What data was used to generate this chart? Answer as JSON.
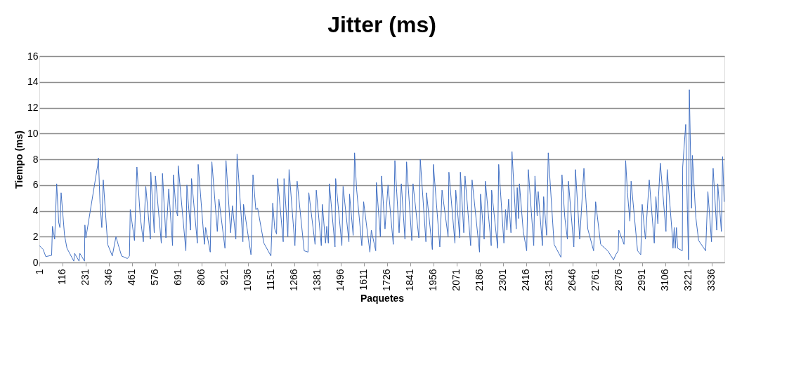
{
  "chart_data": {
    "type": "line",
    "title": "Jitter (ms)",
    "xlabel": "Paquetes",
    "ylabel": "Tiempo (ms)",
    "xlim": [
      1,
      3400
    ],
    "xticks": [
      1,
      116,
      231,
      346,
      461,
      576,
      691,
      806,
      921,
      1036,
      1151,
      1266,
      1381,
      1496,
      1611,
      1726,
      1841,
      1956,
      2071,
      2186,
      2301,
      2416,
      2531,
      2646,
      2761,
      2876,
      2991,
      3106,
      3221,
      3336
    ],
    "ylim": [
      0,
      16
    ],
    "yticks": [
      0,
      2,
      4,
      6,
      8,
      10,
      12,
      14,
      16
    ],
    "grid": "y",
    "marker": "none",
    "line_style": "solid",
    "series": [
      {
        "color": "#4472c4",
        "x": [
          1,
          20,
          33,
          62,
          66,
          77,
          87,
          97,
          103,
          109,
          126,
          138,
          172,
          176,
          198,
          202,
          225,
          227,
          232,
          290,
          294,
          302,
          311,
          318,
          340,
          363,
          381,
          392,
          409,
          438,
          448,
          452,
          473,
          485,
          502,
          517,
          529,
          552,
          554,
          571,
          577,
          606,
          612,
          629,
          643,
          662,
          666,
          679,
          687,
          690,
          728,
          733,
          751,
          756,
          785,
          789,
          820,
          826,
          849,
          857,
          884,
          892,
          922,
          927,
          950,
          959,
          976,
          982,
          1011,
          1014,
          1051,
          1061,
          1075,
          1084,
          1115,
          1150,
          1159,
          1169,
          1178,
          1183,
          1211,
          1215,
          1234,
          1240,
          1269,
          1280,
          1315,
          1334,
          1338,
          1369,
          1375,
          1400,
          1405,
          1421,
          1427,
          1435,
          1440,
          1468,
          1471,
          1502,
          1508,
          1537,
          1540,
          1558,
          1565,
          1575,
          1601,
          1610,
          1641,
          1648,
          1670,
          1673,
          1693,
          1699,
          1716,
          1731,
          1757,
          1765,
          1786,
          1797,
          1815,
          1823,
          1849,
          1855,
          1884,
          1891,
          1919,
          1922,
          1951,
          1956,
          1988,
          1999,
          2029,
          2033,
          2063,
          2067,
          2087,
          2090,
          2107,
          2113,
          2141,
          2148,
          2185,
          2190,
          2208,
          2214,
          2243,
          2245,
          2275,
          2280,
          2306,
          2314,
          2321,
          2329,
          2341,
          2346,
          2367,
          2372,
          2379,
          2383,
          2402,
          2419,
          2427,
          2454,
          2460,
          2471,
          2476,
          2497,
          2503,
          2518,
          2526,
          2555,
          2589,
          2594,
          2608,
          2621,
          2626,
          2653,
          2661,
          2682,
          2703,
          2722,
          2751,
          2761,
          2786,
          2821,
          2850,
          2861,
          2873,
          2876,
          2890,
          2902,
          2910,
          2919,
          2931,
          2937,
          2969,
          2985,
          2992,
          3008,
          3027,
          3052,
          3060,
          3070,
          3073,
          3082,
          3110,
          3116,
          3139,
          3145,
          3151,
          3156,
          3162,
          3168,
          3191,
          3193,
          3208,
          3216,
          3222,
          3226,
          3237,
          3241,
          3258,
          3272,
          3307,
          3318,
          3336,
          3344,
          3362,
          3367,
          3385,
          3391,
          3399
        ],
        "values": [
          1.3,
          1.0,
          0.45,
          0.55,
          2.8,
          1.8,
          6.1,
          3.1,
          2.7,
          5.4,
          2.1,
          1.1,
          0.1,
          0.7,
          0.1,
          0.7,
          0.1,
          2.9,
          1.9,
          7.5,
          8.1,
          4.6,
          2.7,
          6.4,
          1.4,
          0.5,
          2.0,
          1.4,
          0.5,
          0.3,
          0.5,
          4.1,
          1.7,
          7.4,
          3.5,
          1.6,
          5.9,
          1.8,
          7.0,
          2.3,
          6.7,
          1.5,
          6.9,
          1.9,
          5.7,
          1.3,
          6.8,
          4.1,
          3.6,
          7.5,
          0.9,
          6.0,
          2.5,
          6.5,
          1.5,
          7.6,
          1.4,
          2.7,
          0.8,
          7.8,
          2.4,
          4.9,
          1.1,
          7.9,
          2.3,
          4.4,
          1.8,
          8.4,
          1.6,
          4.5,
          0.6,
          6.8,
          4.1,
          4.2,
          1.5,
          0.5,
          4.6,
          2.6,
          2.2,
          6.5,
          1.6,
          6.5,
          2.0,
          7.2,
          1.3,
          6.3,
          0.9,
          0.8,
          5.4,
          1.4,
          5.6,
          1.3,
          4.5,
          1.5,
          2.8,
          1.5,
          6.1,
          1.2,
          6.5,
          1.3,
          5.9,
          1.6,
          5.3,
          2.1,
          8.5,
          5.7,
          1.3,
          4.7,
          0.8,
          2.5,
          0.9,
          6.2,
          2.0,
          6.7,
          2.6,
          6.0,
          1.4,
          7.9,
          2.3,
          6.1,
          1.8,
          7.8,
          1.7,
          6.1,
          1.9,
          8.0,
          1.6,
          5.4,
          1.0,
          7.6,
          1.2,
          5.6,
          2.0,
          7.0,
          1.5,
          5.6,
          1.9,
          7.0,
          2.3,
          6.7,
          1.3,
          6.4,
          0.8,
          5.3,
          1.8,
          6.3,
          1.3,
          5.6,
          1.1,
          7.6,
          1.5,
          4.1,
          2.5,
          4.9,
          2.3,
          8.6,
          2.6,
          5.8,
          3.4,
          6.1,
          2.4,
          0.9,
          7.2,
          1.3,
          6.7,
          3.6,
          5.5,
          1.3,
          5.1,
          2.1,
          8.5,
          1.4,
          0.4,
          6.8,
          3.5,
          1.8,
          6.3,
          1.2,
          7.2,
          1.8,
          7.3,
          2.6,
          0.9,
          4.7,
          1.4,
          0.9,
          0.2,
          0.6,
          0.9,
          2.5,
          1.9,
          1.4,
          7.9,
          5.4,
          3.2,
          6.3,
          0.9,
          0.6,
          4.5,
          1.8,
          6.4,
          1.5,
          5.1,
          3.0,
          5.1,
          7.7,
          2.4,
          7.2,
          2.6,
          1.1,
          2.7,
          1.1,
          2.7,
          1.1,
          0.9,
          7.4,
          10.7,
          4.1,
          0.2,
          13.4,
          4.2,
          8.3,
          3.5,
          1.7,
          0.9,
          5.5,
          1.6,
          7.3,
          2.5,
          6.1,
          2.4,
          8.2,
          4.7
        ]
      }
    ]
  }
}
